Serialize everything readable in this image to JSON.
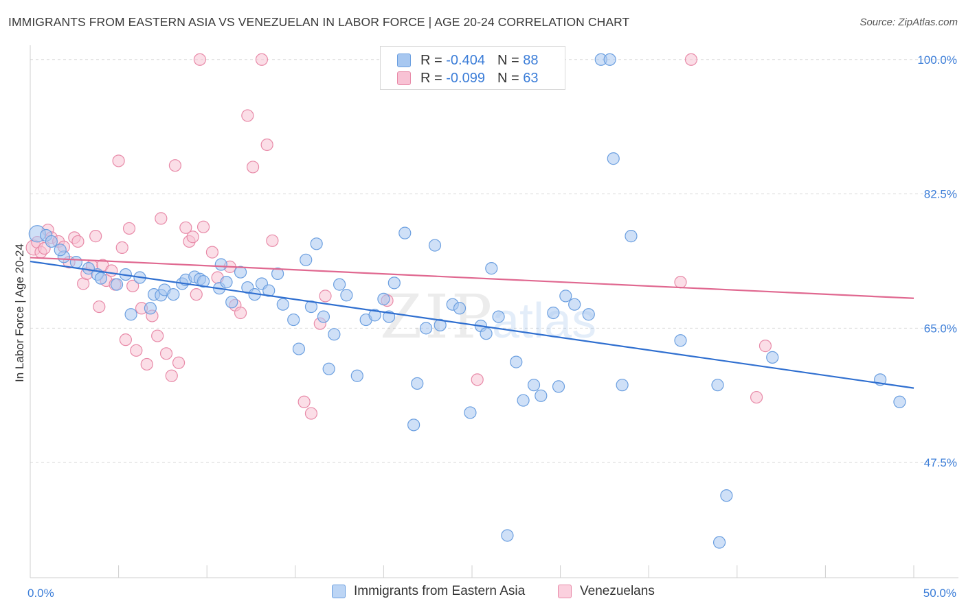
{
  "header": {
    "title": "IMMIGRANTS FROM EASTERN ASIA VS VENEZUELAN IN LABOR FORCE | AGE 20-24 CORRELATION CHART",
    "source": "Source: ZipAtlas.com"
  },
  "legend": {
    "rows": [
      {
        "r_label": "R =",
        "r_value": "-0.404",
        "n_label": "N =",
        "n_value": "88",
        "color": "#a7c7f0",
        "border": "#6b9fe0"
      },
      {
        "r_label": "R =",
        "r_value": "-0.099",
        "n_label": "N =",
        "n_value": "63",
        "color": "#f8c2d4",
        "border": "#e88aa8"
      }
    ],
    "bottom": [
      {
        "label": "Immigrants from Eastern Asia",
        "color": "#bcd5f5",
        "border": "#6b9fe0"
      },
      {
        "label": "Venezuelans",
        "color": "#fbd0de",
        "border": "#e88aa8"
      }
    ]
  },
  "watermark": {
    "zip": "ZIP",
    "atlas": "atlas"
  },
  "chart_data": {
    "type": "scatter",
    "ylabel": "In Labor Force | Age 20-24",
    "xlabel": "",
    "xlim": [
      0,
      50
    ],
    "ylim": [
      32.5,
      101.5
    ],
    "x_tick_labels": [
      {
        "value": 0,
        "label": "0.0%"
      },
      {
        "value": 50,
        "label": "50.0%"
      }
    ],
    "y_tick_labels": [
      {
        "value": 100,
        "label": "100.0%"
      },
      {
        "value": 82.5,
        "label": "82.5%"
      },
      {
        "value": 65,
        "label": "65.0%"
      },
      {
        "value": 47.5,
        "label": "47.5%"
      }
    ],
    "grid": "horizontal dashed",
    "series": [
      {
        "name": "Immigrants from Eastern Asia",
        "color": "#6b9fe0",
        "fill": "#a7c7f0",
        "trend": {
          "x": [
            0,
            50
          ],
          "y": [
            73.7,
            57.2
          ]
        },
        "points": [
          [
            0.4,
            77.3
          ],
          [
            0.9,
            77.1
          ],
          [
            1.2,
            76.3
          ],
          [
            1.9,
            74.3
          ],
          [
            2.6,
            73.6
          ],
          [
            1.7,
            75.2
          ],
          [
            3.3,
            72.8
          ],
          [
            3.8,
            72.0
          ],
          [
            4.0,
            71.5
          ],
          [
            4.9,
            70.7
          ],
          [
            5.4,
            72.0
          ],
          [
            5.7,
            66.8
          ],
          [
            6.2,
            71.6
          ],
          [
            6.8,
            67.6
          ],
          [
            7.0,
            69.4
          ],
          [
            7.4,
            69.3
          ],
          [
            7.6,
            70.0
          ],
          [
            8.1,
            69.4
          ],
          [
            8.6,
            70.8
          ],
          [
            8.8,
            71.3
          ],
          [
            9.3,
            71.7
          ],
          [
            9.6,
            71.4
          ],
          [
            9.8,
            71.1
          ],
          [
            10.7,
            70.2
          ],
          [
            10.8,
            73.3
          ],
          [
            11.1,
            71.0
          ],
          [
            11.4,
            68.4
          ],
          [
            11.9,
            72.3
          ],
          [
            12.3,
            70.3
          ],
          [
            12.7,
            69.4
          ],
          [
            13.1,
            70.8
          ],
          [
            13.5,
            69.9
          ],
          [
            14.0,
            72.1
          ],
          [
            14.3,
            68.1
          ],
          [
            14.9,
            66.1
          ],
          [
            15.2,
            62.3
          ],
          [
            15.6,
            73.9
          ],
          [
            15.9,
            67.8
          ],
          [
            16.2,
            76.0
          ],
          [
            16.6,
            66.5
          ],
          [
            16.9,
            59.7
          ],
          [
            17.2,
            64.2
          ],
          [
            17.5,
            70.7
          ],
          [
            17.9,
            69.3
          ],
          [
            18.5,
            58.8
          ],
          [
            19.0,
            66.1
          ],
          [
            19.5,
            66.7
          ],
          [
            20.0,
            68.8
          ],
          [
            20.3,
            66.5
          ],
          [
            20.6,
            70.9
          ],
          [
            21.2,
            77.4
          ],
          [
            21.7,
            52.4
          ],
          [
            21.9,
            57.8
          ],
          [
            22.4,
            65.0
          ],
          [
            22.9,
            75.8
          ],
          [
            23.2,
            65.4
          ],
          [
            23.9,
            68.1
          ],
          [
            24.3,
            67.6
          ],
          [
            24.9,
            54.0
          ],
          [
            25.5,
            65.3
          ],
          [
            25.8,
            64.3
          ],
          [
            26.1,
            72.8
          ],
          [
            26.5,
            66.5
          ],
          [
            27.5,
            60.6
          ],
          [
            27.9,
            55.6
          ],
          [
            28.5,
            57.6
          ],
          [
            28.9,
            56.2
          ],
          [
            29.6,
            67.0
          ],
          [
            29.9,
            57.4
          ],
          [
            30.3,
            69.2
          ],
          [
            30.8,
            68.1
          ],
          [
            31.6,
            66.8
          ],
          [
            32.3,
            100.0
          ],
          [
            32.8,
            100.0
          ],
          [
            33.0,
            87.1
          ],
          [
            33.5,
            57.6
          ],
          [
            34.0,
            77.0
          ],
          [
            36.8,
            63.4
          ],
          [
            38.9,
            57.6
          ],
          [
            39.4,
            43.2
          ],
          [
            39.0,
            37.1
          ],
          [
            42.0,
            61.2
          ],
          [
            48.1,
            58.3
          ],
          [
            49.2,
            55.4
          ],
          [
            27.0,
            38.0
          ]
        ]
      },
      {
        "name": "Venezuelans",
        "color": "#e88aa8",
        "fill": "#f8c2d4",
        "trend": {
          "x": [
            0,
            50
          ],
          "y": [
            74.2,
            68.9
          ]
        },
        "points": [
          [
            0.2,
            75.5
          ],
          [
            0.4,
            76.2
          ],
          [
            0.6,
            74.9
          ],
          [
            0.8,
            75.4
          ],
          [
            1.0,
            77.8
          ],
          [
            1.2,
            76.8
          ],
          [
            1.6,
            76.3
          ],
          [
            1.9,
            75.6
          ],
          [
            2.2,
            73.6
          ],
          [
            2.5,
            76.8
          ],
          [
            2.7,
            76.3
          ],
          [
            3.0,
            70.8
          ],
          [
            3.2,
            72.1
          ],
          [
            3.5,
            73.1
          ],
          [
            3.7,
            77.0
          ],
          [
            3.9,
            67.8
          ],
          [
            4.1,
            73.2
          ],
          [
            4.3,
            71.2
          ],
          [
            4.6,
            72.5
          ],
          [
            4.8,
            70.7
          ],
          [
            5.0,
            86.8
          ],
          [
            5.2,
            75.5
          ],
          [
            5.4,
            63.5
          ],
          [
            5.6,
            78.0
          ],
          [
            5.8,
            70.5
          ],
          [
            6.0,
            62.1
          ],
          [
            6.3,
            67.6
          ],
          [
            6.6,
            60.3
          ],
          [
            6.9,
            66.6
          ],
          [
            7.2,
            64.0
          ],
          [
            7.4,
            79.3
          ],
          [
            7.7,
            61.7
          ],
          [
            8.0,
            58.8
          ],
          [
            8.2,
            86.2
          ],
          [
            8.4,
            60.5
          ],
          [
            8.8,
            78.1
          ],
          [
            9.0,
            76.3
          ],
          [
            9.2,
            76.9
          ],
          [
            9.4,
            69.4
          ],
          [
            9.6,
            100.0
          ],
          [
            9.8,
            78.2
          ],
          [
            10.3,
            74.9
          ],
          [
            10.6,
            71.6
          ],
          [
            11.3,
            73.0
          ],
          [
            11.6,
            68.0
          ],
          [
            11.9,
            67.0
          ],
          [
            12.3,
            92.7
          ],
          [
            12.6,
            86.0
          ],
          [
            13.1,
            100.0
          ],
          [
            13.4,
            88.9
          ],
          [
            13.7,
            76.4
          ],
          [
            15.5,
            55.4
          ],
          [
            15.9,
            53.9
          ],
          [
            16.4,
            65.6
          ],
          [
            16.7,
            69.2
          ],
          [
            20.2,
            68.6
          ],
          [
            25.3,
            58.3
          ],
          [
            37.4,
            100.0
          ],
          [
            36.8,
            71.0
          ],
          [
            41.6,
            62.7
          ],
          [
            41.1,
            56.0
          ]
        ]
      }
    ]
  }
}
